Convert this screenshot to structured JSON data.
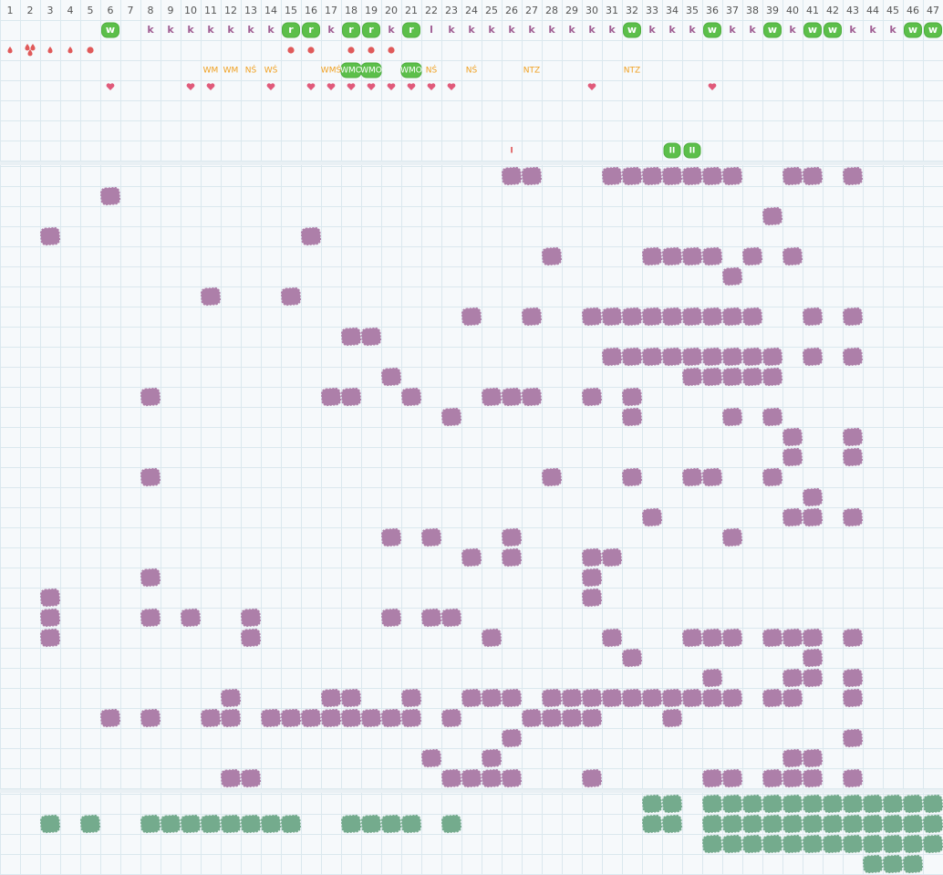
{
  "columns": [
    1,
    2,
    3,
    4,
    5,
    6,
    7,
    8,
    9,
    10,
    11,
    12,
    13,
    14,
    15,
    16,
    17,
    18,
    19,
    20,
    21,
    22,
    23,
    24,
    25,
    26,
    27,
    28,
    29,
    30,
    31,
    32,
    33,
    34,
    35,
    36,
    37,
    38,
    39,
    40,
    41,
    42,
    43,
    44,
    45,
    46,
    47
  ],
  "top": {
    "letters": [
      {
        "col": 6,
        "text": "w",
        "badge": true
      },
      {
        "col": 8,
        "text": "k"
      },
      {
        "col": 9,
        "text": "k"
      },
      {
        "col": 10,
        "text": "k"
      },
      {
        "col": 11,
        "text": "k"
      },
      {
        "col": 12,
        "text": "k"
      },
      {
        "col": 13,
        "text": "k"
      },
      {
        "col": 14,
        "text": "k"
      },
      {
        "col": 15,
        "text": "r",
        "badge": true
      },
      {
        "col": 16,
        "text": "r",
        "badge": true
      },
      {
        "col": 17,
        "text": "k"
      },
      {
        "col": 18,
        "text": "r",
        "badge": true
      },
      {
        "col": 19,
        "text": "r",
        "badge": true
      },
      {
        "col": 20,
        "text": "k"
      },
      {
        "col": 21,
        "text": "r",
        "badge": true
      },
      {
        "col": 22,
        "text": "l"
      },
      {
        "col": 23,
        "text": "k"
      },
      {
        "col": 24,
        "text": "k"
      },
      {
        "col": 25,
        "text": "k"
      },
      {
        "col": 26,
        "text": "k"
      },
      {
        "col": 27,
        "text": "k"
      },
      {
        "col": 28,
        "text": "k"
      },
      {
        "col": 29,
        "text": "k"
      },
      {
        "col": 30,
        "text": "k"
      },
      {
        "col": 31,
        "text": "k"
      },
      {
        "col": 32,
        "text": "w",
        "badge": true
      },
      {
        "col": 33,
        "text": "k"
      },
      {
        "col": 34,
        "text": "k"
      },
      {
        "col": 35,
        "text": "k"
      },
      {
        "col": 36,
        "text": "w",
        "badge": true
      },
      {
        "col": 37,
        "text": "k"
      },
      {
        "col": 38,
        "text": "k"
      },
      {
        "col": 39,
        "text": "w",
        "badge": true
      },
      {
        "col": 40,
        "text": "k"
      },
      {
        "col": 41,
        "text": "w",
        "badge": true
      },
      {
        "col": 42,
        "text": "w",
        "badge": true
      },
      {
        "col": 43,
        "text": "k"
      },
      {
        "col": 44,
        "text": "k"
      },
      {
        "col": 45,
        "text": "k"
      },
      {
        "col": 46,
        "text": "w",
        "badge": true
      },
      {
        "col": 47,
        "text": "w",
        "badge": true
      }
    ],
    "markers": [
      {
        "col": 1,
        "symbol": "drop"
      },
      {
        "col": 2,
        "symbol": "double-drop"
      },
      {
        "col": 3,
        "symbol": "drop"
      },
      {
        "col": 4,
        "symbol": "drop"
      },
      {
        "col": 5,
        "symbol": "dot"
      },
      {
        "col": 15,
        "symbol": "dot"
      },
      {
        "col": 16,
        "symbol": "dot"
      },
      {
        "col": 18,
        "symbol": "dot"
      },
      {
        "col": 19,
        "symbol": "dot"
      },
      {
        "col": 20,
        "symbol": "dot"
      }
    ],
    "codes": [
      {
        "col": 11,
        "text": "WM"
      },
      {
        "col": 12,
        "text": "WM"
      },
      {
        "col": 13,
        "text": "NŚ"
      },
      {
        "col": 14,
        "text": "WŚ"
      },
      {
        "col": 17,
        "text": "WMŚ"
      },
      {
        "col": 18,
        "text": "WMO",
        "badge": true
      },
      {
        "col": 19,
        "text": "WMO",
        "badge": true
      },
      {
        "col": 21,
        "text": "WMO",
        "badge": true
      },
      {
        "col": 22,
        "text": "NŚ"
      },
      {
        "col": 24,
        "text": "NŚ"
      },
      {
        "col": 27,
        "text": "NTZ"
      },
      {
        "col": 32,
        "text": "NTZ"
      }
    ],
    "hearts": [
      6,
      10,
      11,
      14,
      16,
      17,
      18,
      19,
      20,
      21,
      22,
      23,
      30,
      36
    ],
    "ticks": [
      {
        "col": 26,
        "text": "I"
      },
      {
        "col": 34,
        "text": "II",
        "badge": true
      },
      {
        "col": 35,
        "text": "II",
        "badge": true
      }
    ]
  },
  "purple_rows": [
    [
      26,
      27,
      31,
      32,
      33,
      34,
      35,
      36,
      37,
      40,
      41,
      43
    ],
    [
      6
    ],
    [
      39
    ],
    [
      3,
      16
    ],
    [
      28,
      33,
      34,
      35,
      36,
      38,
      40
    ],
    [
      37
    ],
    [
      11,
      15
    ],
    [
      24,
      27,
      30,
      31,
      32,
      33,
      34,
      35,
      36,
      37,
      38,
      41,
      43
    ],
    [
      18,
      19
    ],
    [
      31,
      32,
      33,
      34,
      35,
      36,
      37,
      38,
      39,
      41,
      43
    ],
    [
      20,
      35,
      36,
      37,
      38,
      39
    ],
    [
      8,
      17,
      18,
      21,
      25,
      26,
      27,
      30,
      32
    ],
    [
      23,
      32,
      37,
      39
    ],
    [
      40,
      43
    ],
    [
      40,
      43
    ],
    [
      8,
      28,
      32,
      35,
      36,
      39
    ],
    [
      41
    ],
    [
      33,
      40,
      41,
      43
    ],
    [
      20,
      22,
      26,
      37
    ],
    [
      24,
      26,
      30,
      31
    ],
    [
      8,
      30
    ],
    [
      3,
      30
    ],
    [
      3,
      8,
      10,
      13,
      20,
      22,
      23
    ],
    [
      3,
      13,
      25,
      31,
      35,
      36,
      37,
      39,
      40,
      41,
      43
    ],
    [
      32,
      41
    ],
    [
      36,
      40,
      41,
      43
    ],
    [
      12,
      17,
      18,
      21,
      24,
      25,
      26,
      28,
      29,
      30,
      31,
      32,
      33,
      34,
      35,
      36,
      37,
      39,
      40,
      43
    ],
    [
      6,
      8,
      11,
      12,
      14,
      15,
      16,
      17,
      18,
      19,
      20,
      21,
      23,
      27,
      28,
      29,
      30,
      34
    ],
    [
      26,
      43
    ],
    [
      22,
      25,
      40,
      41
    ],
    [
      12,
      13,
      23,
      24,
      25,
      26,
      30,
      36,
      37,
      39,
      40,
      41,
      43
    ]
  ],
  "green_rows": [
    [
      33,
      34,
      36,
      37,
      38,
      39,
      40,
      41,
      42,
      43,
      44,
      45,
      46,
      47
    ],
    [
      3,
      5,
      8,
      9,
      10,
      11,
      12,
      13,
      14,
      15,
      18,
      19,
      20,
      21,
      23,
      33,
      34,
      36,
      37,
      38,
      39,
      40,
      41,
      42,
      43,
      44,
      45,
      46,
      47
    ],
    [
      36,
      37,
      38,
      39,
      40,
      41,
      42,
      43,
      44,
      45,
      46,
      47
    ],
    [
      44,
      45,
      46
    ]
  ]
}
